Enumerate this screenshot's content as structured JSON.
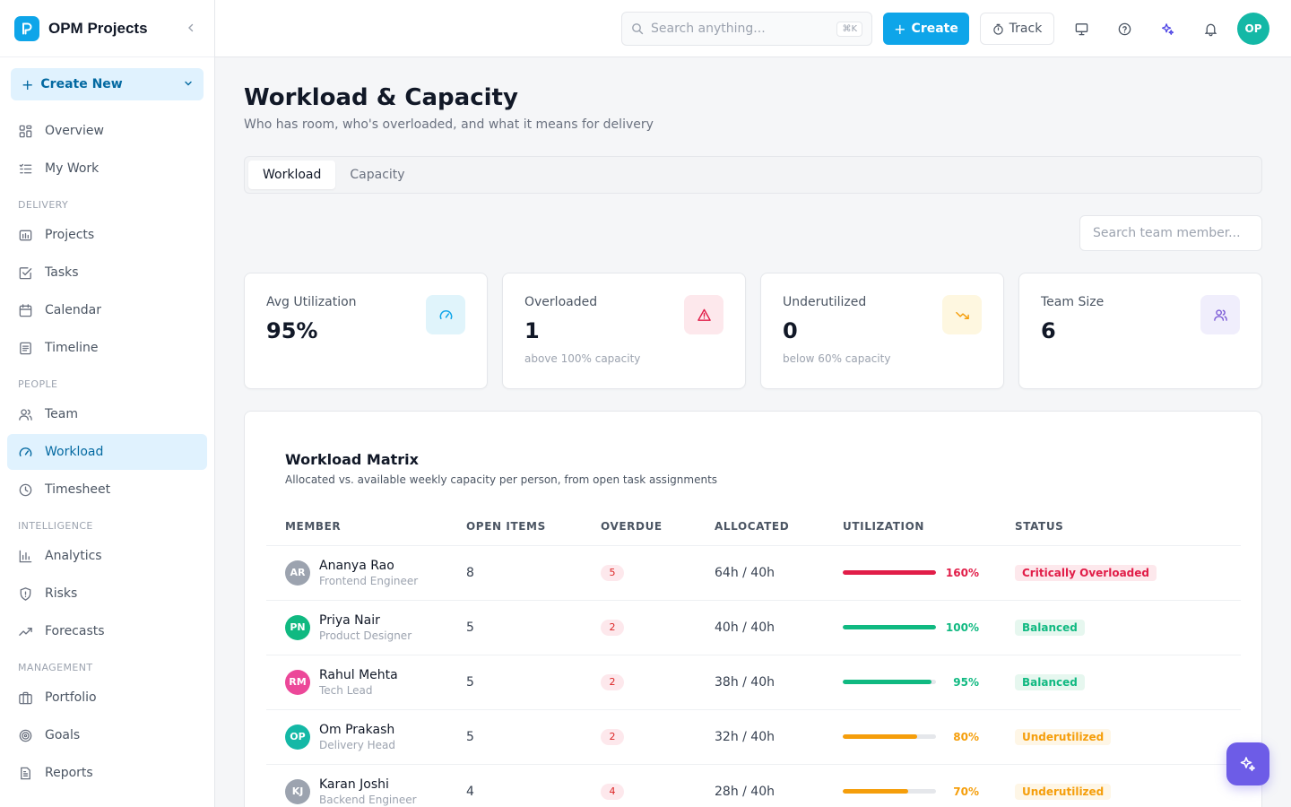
{
  "brand": {
    "name": "OPM Projects"
  },
  "sidebar": {
    "create_label": "Create New",
    "items_top": [
      {
        "label": "Overview",
        "icon": "grid-icon"
      },
      {
        "label": "My Work",
        "icon": "list-check-icon"
      }
    ],
    "sections": [
      {
        "title": "DELIVERY",
        "items": [
          {
            "label": "Projects",
            "icon": "folder-icon"
          },
          {
            "label": "Tasks",
            "icon": "checkbox-icon"
          },
          {
            "label": "Calendar",
            "icon": "calendar-icon"
          },
          {
            "label": "Timeline",
            "icon": "document-icon"
          }
        ]
      },
      {
        "title": "PEOPLE",
        "items": [
          {
            "label": "Team",
            "icon": "users-icon"
          },
          {
            "label": "Workload",
            "icon": "gauge-icon",
            "active": true
          },
          {
            "label": "Timesheet",
            "icon": "clock-icon"
          }
        ]
      },
      {
        "title": "INTELLIGENCE",
        "items": [
          {
            "label": "Analytics",
            "icon": "bar-chart-icon"
          },
          {
            "label": "Risks",
            "icon": "shield-icon"
          },
          {
            "label": "Forecasts",
            "icon": "trend-up-icon"
          }
        ]
      },
      {
        "title": "MANAGEMENT",
        "items": [
          {
            "label": "Portfolio",
            "icon": "briefcase-icon"
          },
          {
            "label": "Goals",
            "icon": "target-icon"
          },
          {
            "label": "Reports",
            "icon": "report-icon"
          }
        ]
      }
    ]
  },
  "topbar": {
    "search_placeholder": "Search anything...",
    "search_shortcut": "⌘K",
    "create_label": "Create",
    "track_label": "Track",
    "avatar_initials": "OP"
  },
  "page": {
    "title": "Workload & Capacity",
    "subtitle": "Who has room, who's overloaded, and what it means for delivery",
    "tabs": [
      {
        "label": "Workload",
        "active": true
      },
      {
        "label": "Capacity"
      }
    ],
    "member_search_placeholder": "Search team member..."
  },
  "stats": [
    {
      "label": "Avg Utilization",
      "value": "95%",
      "note": "",
      "icon": "gauge-icon",
      "tint": "#e0f4fb",
      "color": "#0ea5e9"
    },
    {
      "label": "Overloaded",
      "value": "1",
      "note": "above 100% capacity",
      "icon": "warning-icon",
      "tint": "#fde8ec",
      "color": "#e11d48"
    },
    {
      "label": "Underutilized",
      "value": "0",
      "note": "below 60% capacity",
      "icon": "trend-down-icon",
      "tint": "#fef7e0",
      "color": "#f59e0b"
    },
    {
      "label": "Team Size",
      "value": "6",
      "note": "",
      "icon": "users-icon",
      "tint": "#f0eefc",
      "color": "#7c5cd6"
    }
  ],
  "matrix": {
    "title": "Workload Matrix",
    "subtitle": "Allocated vs. available weekly capacity per person, from open task assignments",
    "columns": [
      "MEMBER",
      "OPEN ITEMS",
      "OVERDUE",
      "ALLOCATED",
      "UTILIZATION",
      "STATUS"
    ],
    "rows": [
      {
        "initials": "AR",
        "avatar_color": "#9ca3af",
        "name": "Ananya Rao",
        "role": "Frontend Engineer",
        "open": "8",
        "overdue": "5",
        "allocated": "64h / 40h",
        "util": 160,
        "util_label": "160%",
        "util_color": "#e11d48",
        "status": "Critically Overloaded",
        "status_bg": "#fde8ec",
        "status_color": "#e11d48"
      },
      {
        "initials": "PN",
        "avatar_color": "#10b981",
        "name": "Priya Nair",
        "role": "Product Designer",
        "open": "5",
        "overdue": "2",
        "allocated": "40h / 40h",
        "util": 100,
        "util_label": "100%",
        "util_color": "#10b981",
        "status": "Balanced",
        "status_bg": "#e6f7ef",
        "status_color": "#10b981"
      },
      {
        "initials": "RM",
        "avatar_color": "#ec4899",
        "name": "Rahul Mehta",
        "role": "Tech Lead",
        "open": "5",
        "overdue": "2",
        "allocated": "38h / 40h",
        "util": 95,
        "util_label": "95%",
        "util_color": "#10b981",
        "status": "Balanced",
        "status_bg": "#e6f7ef",
        "status_color": "#10b981"
      },
      {
        "initials": "OP",
        "avatar_color": "#14b8a6",
        "name": "Om Prakash",
        "role": "Delivery Head",
        "open": "5",
        "overdue": "2",
        "allocated": "32h / 40h",
        "util": 80,
        "util_label": "80%",
        "util_color": "#f59e0b",
        "status": "Underutilized",
        "status_bg": "#fef6e6",
        "status_color": "#f59e0b"
      },
      {
        "initials": "KJ",
        "avatar_color": "#9ca3af",
        "name": "Karan Joshi",
        "role": "Backend Engineer",
        "open": "4",
        "overdue": "4",
        "allocated": "28h / 40h",
        "util": 70,
        "util_label": "70%",
        "util_color": "#f59e0b",
        "status": "Underutilized",
        "status_bg": "#fef6e6",
        "status_color": "#f59e0b"
      }
    ]
  }
}
